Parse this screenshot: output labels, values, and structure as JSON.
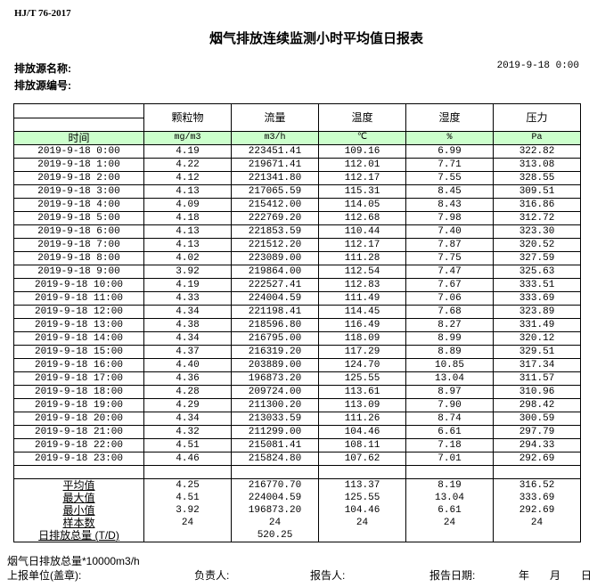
{
  "header": {
    "standard": "HJ/T  76-2017",
    "title": "烟气排放连续监测小时平均值日报表",
    "source_name_label": "排放源名称:",
    "source_id_label": "排放源编号:",
    "report_datetime": "2019-9-18 0:00"
  },
  "table": {
    "columns": [
      "颗粒物",
      "流量",
      "温度",
      "湿度",
      "压力"
    ],
    "time_label": "时间",
    "units": [
      "mg/m3",
      "m3/h",
      "℃",
      "%",
      "Pa"
    ],
    "rows": [
      [
        "2019-9-18 0:00",
        "4.19",
        "223451.41",
        "109.16",
        "6.99",
        "322.82"
      ],
      [
        "2019-9-18 1:00",
        "4.22",
        "219671.41",
        "112.01",
        "7.71",
        "313.08"
      ],
      [
        "2019-9-18 2:00",
        "4.12",
        "221341.80",
        "112.17",
        "7.55",
        "328.55"
      ],
      [
        "2019-9-18 3:00",
        "4.13",
        "217065.59",
        "115.31",
        "8.45",
        "309.51"
      ],
      [
        "2019-9-18 4:00",
        "4.09",
        "215412.00",
        "114.05",
        "8.43",
        "316.86"
      ],
      [
        "2019-9-18 5:00",
        "4.18",
        "222769.20",
        "112.68",
        "7.98",
        "312.72"
      ],
      [
        "2019-9-18 6:00",
        "4.13",
        "221853.59",
        "110.44",
        "7.40",
        "323.30"
      ],
      [
        "2019-9-18 7:00",
        "4.13",
        "221512.20",
        "112.17",
        "7.87",
        "320.52"
      ],
      [
        "2019-9-18 8:00",
        "4.02",
        "223089.00",
        "111.28",
        "7.75",
        "327.59"
      ],
      [
        "2019-9-18 9:00",
        "3.92",
        "219864.00",
        "112.54",
        "7.47",
        "325.63"
      ],
      [
        "2019-9-18 10:00",
        "4.19",
        "222527.41",
        "112.83",
        "7.67",
        "333.51"
      ],
      [
        "2019-9-18 11:00",
        "4.33",
        "224004.59",
        "111.49",
        "7.06",
        "333.69"
      ],
      [
        "2019-9-18 12:00",
        "4.34",
        "221198.41",
        "114.45",
        "7.68",
        "323.89"
      ],
      [
        "2019-9-18 13:00",
        "4.38",
        "218596.80",
        "116.49",
        "8.27",
        "331.49"
      ],
      [
        "2019-9-18 14:00",
        "4.34",
        "216795.00",
        "118.09",
        "8.99",
        "320.12"
      ],
      [
        "2019-9-18 15:00",
        "4.37",
        "216319.20",
        "117.29",
        "8.89",
        "329.51"
      ],
      [
        "2019-9-18 16:00",
        "4.40",
        "203889.00",
        "124.70",
        "10.85",
        "317.34"
      ],
      [
        "2019-9-18 17:00",
        "4.36",
        "196873.20",
        "125.55",
        "13.04",
        "311.57"
      ],
      [
        "2019-9-18 18:00",
        "4.28",
        "209724.00",
        "113.61",
        "8.97",
        "310.96"
      ],
      [
        "2019-9-18 19:00",
        "4.29",
        "211300.20",
        "113.09",
        "7.90",
        "298.42"
      ],
      [
        "2019-9-18 20:00",
        "4.34",
        "213033.59",
        "111.26",
        "8.74",
        "300.59"
      ],
      [
        "2019-9-18 21:00",
        "4.32",
        "211299.00",
        "104.46",
        "6.61",
        "297.79"
      ],
      [
        "2019-9-18 22:00",
        "4.51",
        "215081.41",
        "108.11",
        "7.18",
        "294.33"
      ],
      [
        "2019-9-18 23:00",
        "4.46",
        "215824.80",
        "107.62",
        "7.01",
        "292.69"
      ]
    ],
    "summary": [
      [
        "平均值",
        "4.25",
        "216770.70",
        "113.37",
        "8.19",
        "316.52"
      ],
      [
        "最大值",
        "4.51",
        "224004.59",
        "125.55",
        "13.04",
        "333.69"
      ],
      [
        "最小值",
        "3.92",
        "196873.20",
        "104.46",
        "6.61",
        "292.69"
      ],
      [
        "样本数",
        "24",
        "24",
        "24",
        "24",
        "24"
      ],
      [
        "日排放总量 (T/D)",
        "",
        "520.25",
        "",
        "",
        ""
      ]
    ]
  },
  "footer": {
    "note": "烟气日排放总量*10000m3/h",
    "unit_label": "上报单位(盖章):",
    "responsible_label": "负责人:",
    "reporter_label": "报告人:",
    "date_label": "报告日期:",
    "year": "年",
    "month": "月",
    "day": "日"
  },
  "colors": {
    "unit_row_bg": "#ccffcc"
  }
}
